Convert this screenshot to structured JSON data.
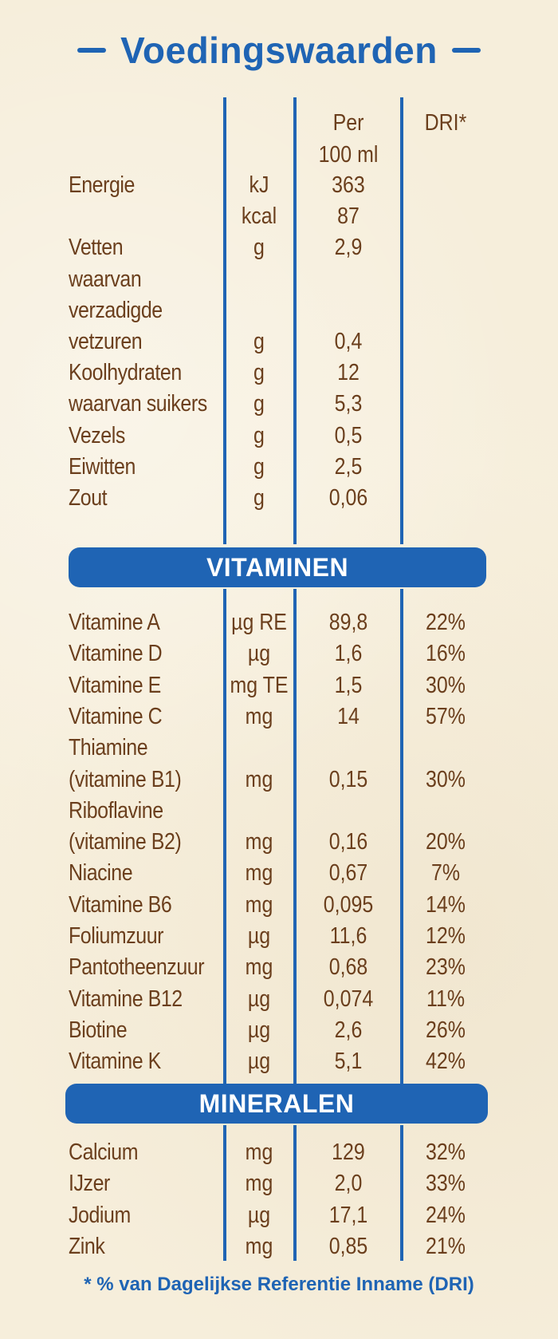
{
  "title": "Voedingswaarden",
  "header": {
    "per_line1": "Per",
    "per_line2": "100 ml",
    "dri": "DRI*"
  },
  "nutrients": [
    {
      "name": "Energie",
      "unit": "kJ",
      "value": "363",
      "dri": ""
    },
    {
      "name": "",
      "unit": "kcal",
      "value": "87",
      "dri": ""
    },
    {
      "name": "Vetten",
      "unit": "g",
      "value": "2,9",
      "dri": ""
    },
    {
      "name": "waarvan",
      "unit": "",
      "value": "",
      "dri": ""
    },
    {
      "name": "verzadigde",
      "unit": "",
      "value": "",
      "dri": ""
    },
    {
      "name": "vetzuren",
      "unit": "g",
      "value": "0,4",
      "dri": ""
    },
    {
      "name": "Koolhydraten",
      "unit": "g",
      "value": "12",
      "dri": ""
    },
    {
      "name": "waarvan suikers",
      "unit": "g",
      "value": "5,3",
      "dri": ""
    },
    {
      "name": "Vezels",
      "unit": "g",
      "value": "0,5",
      "dri": ""
    },
    {
      "name": "Eiwitten",
      "unit": "g",
      "value": "2,5",
      "dri": ""
    },
    {
      "name": "Zout",
      "unit": "g",
      "value": "0,06",
      "dri": ""
    }
  ],
  "vitamins_heading": "VITAMINEN",
  "vitamins": [
    {
      "name": "Vitamine A",
      "unit": "µg RE",
      "value": "89,8",
      "dri": "22%"
    },
    {
      "name": "Vitamine D",
      "unit": "µg",
      "value": "1,6",
      "dri": "16%"
    },
    {
      "name": "Vitamine E",
      "unit": "mg TE",
      "value": "1,5",
      "dri": "30%"
    },
    {
      "name": "Vitamine C",
      "unit": "mg",
      "value": "14",
      "dri": "57%"
    },
    {
      "name": "Thiamine",
      "unit": "",
      "value": "",
      "dri": ""
    },
    {
      "name": "(vitamine B1)",
      "unit": "mg",
      "value": "0,15",
      "dri": "30%"
    },
    {
      "name": "Riboflavine",
      "unit": "",
      "value": "",
      "dri": ""
    },
    {
      "name": "(vitamine B2)",
      "unit": "mg",
      "value": "0,16",
      "dri": "20%"
    },
    {
      "name": "Niacine",
      "unit": "mg",
      "value": "0,67",
      "dri": "7%"
    },
    {
      "name": "Vitamine B6",
      "unit": "mg",
      "value": "0,095",
      "dri": "14%"
    },
    {
      "name": "Foliumzuur",
      "unit": "µg",
      "value": "11,6",
      "dri": "12%"
    },
    {
      "name": "Pantotheenzuur",
      "unit": "mg",
      "value": "0,68",
      "dri": "23%"
    },
    {
      "name": "Vitamine B12",
      "unit": "µg",
      "value": "0,074",
      "dri": "11%"
    },
    {
      "name": "Biotine",
      "unit": "µg",
      "value": "2,6",
      "dri": "26%"
    },
    {
      "name": "Vitamine K",
      "unit": "µg",
      "value": "5,1",
      "dri": "42%"
    }
  ],
  "minerals_heading": "MINERALEN",
  "minerals": [
    {
      "name": "Calcium",
      "unit": "mg",
      "value": "129",
      "dri": "32%"
    },
    {
      "name": "IJzer",
      "unit": "mg",
      "value": "2,0",
      "dri": "33%"
    },
    {
      "name": "Jodium",
      "unit": "µg",
      "value": "17,1",
      "dri": "24%"
    },
    {
      "name": "Zink",
      "unit": "mg",
      "value": "0,85",
      "dri": "21%"
    }
  ],
  "footnote": "* % van Dagelijkse Referentie Inname (DRI)",
  "colors": {
    "blue": "#1f64b4",
    "brown": "#6b3f1d",
    "paper": "#f6eedb"
  }
}
